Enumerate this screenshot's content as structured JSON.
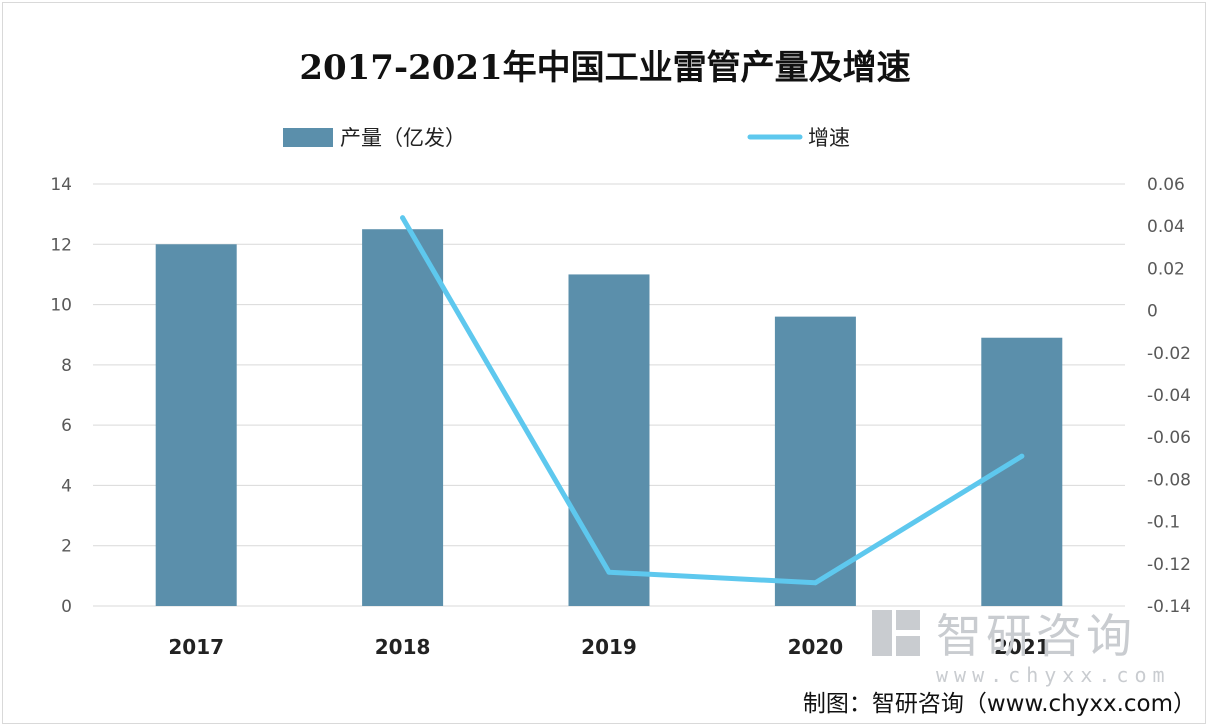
{
  "chart_data": {
    "type": "bar",
    "title": "2017-2021年中国工业雷管产量及增速",
    "categories": [
      "2017",
      "2018",
      "2019",
      "2020",
      "2021"
    ],
    "series": [
      {
        "name": "产量（亿发）",
        "type": "bar",
        "axis": "left",
        "values": [
          12.0,
          12.5,
          11.0,
          9.6,
          8.9
        ],
        "color": "#5b8fab"
      },
      {
        "name": "增速",
        "type": "line",
        "axis": "right",
        "values": [
          null,
          0.044,
          -0.124,
          -0.129,
          -0.069
        ],
        "color": "#5ec8ee"
      }
    ],
    "y_left": {
      "ylim": [
        0,
        14
      ],
      "ticks": [
        "0",
        "2",
        "4",
        "6",
        "8",
        "10",
        "12",
        "14"
      ]
    },
    "y_right": {
      "ylim": [
        -0.14,
        0.06
      ],
      "ticks": [
        "-0.14",
        "-0.12",
        "-0.1",
        "-0.08",
        "-0.06",
        "-0.04",
        "-0.02",
        "0",
        "0.02",
        "0.04",
        "0.06"
      ]
    },
    "grid": true,
    "legend_position": "top"
  },
  "watermark": {
    "brand": "智研咨询",
    "site": "www.chyxx.com"
  },
  "credit": "制图：智研咨询（www.chyxx.com）"
}
